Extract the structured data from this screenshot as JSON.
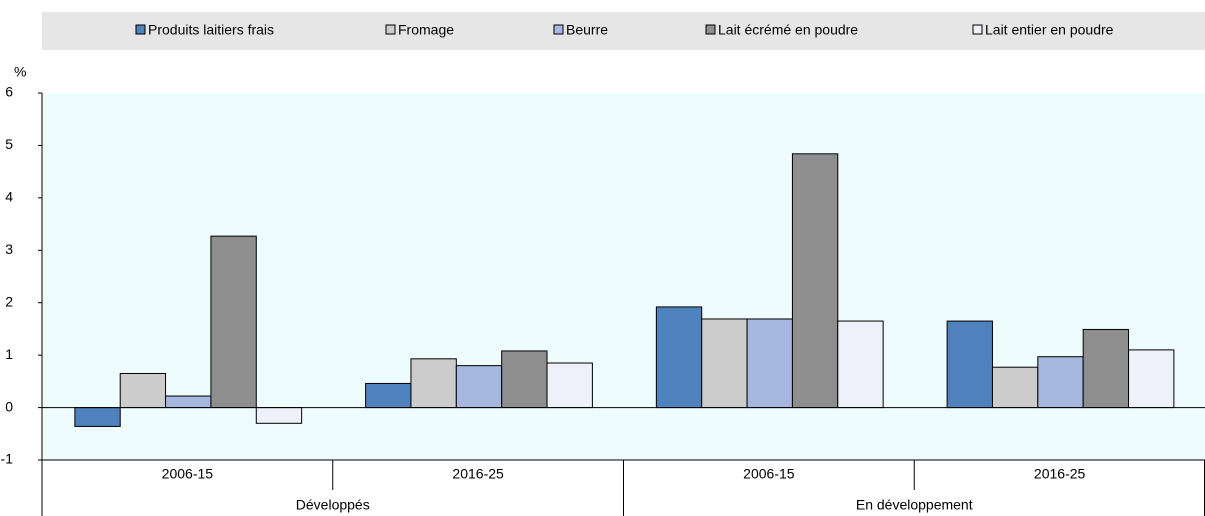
{
  "chart_data": {
    "type": "bar",
    "y_label": "%",
    "categories": [
      "2006-15",
      "2016-25",
      "2006-15",
      "2016-25"
    ],
    "groups": [
      "Développés",
      "En développement"
    ],
    "series": [
      {
        "name": "Produits laitiers frais",
        "color": "#4f81bd",
        "values": [
          -0.36,
          0.46,
          1.92,
          1.65
        ]
      },
      {
        "name": "Fromage",
        "color": "#cccccc",
        "values": [
          0.65,
          0.93,
          1.69,
          0.77
        ]
      },
      {
        "name": "Beurre",
        "color": "#a6b7e0",
        "values": [
          0.22,
          0.8,
          1.69,
          0.97
        ]
      },
      {
        "name": "Lait écrémé en poudre",
        "color": "#8e8e8e",
        "values": [
          3.27,
          1.08,
          4.84,
          1.49
        ]
      },
      {
        "name": "Lait entier en poudre",
        "color": "#eef0fa",
        "values": [
          -0.3,
          0.85,
          1.65,
          1.1
        ]
      }
    ],
    "ylim": [
      -1,
      6
    ],
    "yticks": [
      -1,
      0,
      1,
      2,
      3,
      4,
      5,
      6
    ],
    "plot_background": "#effcfd"
  }
}
